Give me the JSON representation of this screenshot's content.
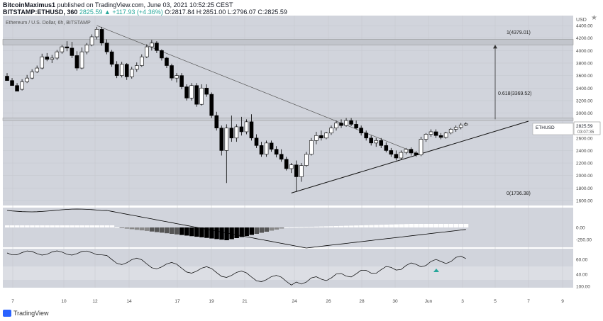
{
  "header": {
    "author": "BitcoinMaximus1",
    "published": "published on TradingView.com, June 03, 2021 10:52:25 CEST",
    "symbol": "BITSTAMP:ETHUSD, 360",
    "ohlc_change": "2825.59 ▲ +117.93 (+4.36%)",
    "open": "O:2817.84",
    "high": "H:2851.00",
    "low": "L:2796.07",
    "close": "C:2825.59"
  },
  "chart_title": "Ethereum / U.S. Dollar, 6h, BITSTAMP",
  "currency": "USD",
  "price_tag": {
    "symbol": "ETHUSD",
    "price": "2825.59",
    "countdown": "03:07:35"
  },
  "fib": {
    "top": "1(4379.01)",
    "mid": "0.618(3369.52)",
    "bottom": "0(1736.38)"
  },
  "footer": {
    "brand": "TradingView"
  },
  "colors": {
    "panel": "#d1d4dc",
    "candle_up": "#ffffff",
    "candle_down": "#000000",
    "up_text": "#26a69a",
    "arrow": "#26a69a"
  },
  "chart_data": {
    "type": "candlestick",
    "title": "Ethereum / U.S. Dollar, 6h, BITSTAMP",
    "y_ticks": [
      4400,
      4200,
      4000,
      3800,
      3600,
      3400,
      3200,
      3000,
      2800,
      2600,
      2400,
      2200,
      2000,
      1800,
      1600
    ],
    "x_ticks": [
      "7",
      "10",
      "12",
      "14",
      "17",
      "19",
      "21",
      "24",
      "26",
      "28",
      "30",
      "Jun",
      "3",
      "5",
      "7",
      "9"
    ],
    "ylim": [
      1520,
      4560
    ],
    "candles": [
      [
        3590,
        3640,
        3540,
        3520
      ],
      [
        3520,
        3560,
        3470,
        3440
      ],
      [
        3440,
        3480,
        3380,
        3350
      ],
      [
        3380,
        3540,
        3360,
        3500
      ],
      [
        3500,
        3610,
        3480,
        3560
      ],
      [
        3560,
        3700,
        3540,
        3660
      ],
      [
        3660,
        3760,
        3640,
        3720
      ],
      [
        3720,
        3950,
        3700,
        3900
      ],
      [
        3900,
        3960,
        3830,
        3860
      ],
      [
        3860,
        3930,
        3800,
        3880
      ],
      [
        3880,
        4010,
        3850,
        3980
      ],
      [
        3980,
        4090,
        3950,
        4060
      ],
      [
        4060,
        4150,
        3990,
        4040
      ],
      [
        4040,
        4140,
        3880,
        3920
      ],
      [
        3920,
        3990,
        3680,
        3720
      ],
      [
        3720,
        4050,
        3700,
        3980
      ],
      [
        3980,
        4120,
        3940,
        4090
      ],
      [
        4090,
        4260,
        4070,
        4220
      ],
      [
        4220,
        4380,
        4180,
        4340
      ],
      [
        4340,
        4380,
        4080,
        4120
      ],
      [
        4120,
        4180,
        3940,
        3980
      ],
      [
        3980,
        4010,
        3740,
        3780
      ],
      [
        3780,
        3830,
        3560,
        3600
      ],
      [
        3600,
        3820,
        3570,
        3780
      ],
      [
        3780,
        3800,
        3530,
        3580
      ],
      [
        3580,
        3740,
        3550,
        3700
      ],
      [
        3700,
        3810,
        3660,
        3760
      ],
      [
        3760,
        3940,
        3740,
        3900
      ],
      [
        3900,
        4100,
        3880,
        4060
      ],
      [
        4060,
        4170,
        4000,
        4120
      ],
      [
        4120,
        4150,
        3960,
        4000
      ],
      [
        4000,
        4020,
        3840,
        3880
      ],
      [
        3880,
        3900,
        3720,
        3760
      ],
      [
        3760,
        3790,
        3520,
        3560
      ],
      [
        3560,
        3640,
        3490,
        3600
      ],
      [
        3600,
        3640,
        3380,
        3420
      ],
      [
        3420,
        3460,
        3200,
        3240
      ],
      [
        3240,
        3480,
        3200,
        3440
      ],
      [
        3440,
        3480,
        3100,
        3140
      ],
      [
        3140,
        3460,
        3120,
        3400
      ],
      [
        3400,
        3460,
        3260,
        3300
      ],
      [
        3300,
        3330,
        2920,
        2960
      ],
      [
        2960,
        3020,
        2720,
        2760
      ],
      [
        2760,
        2800,
        2320,
        2400
      ],
      [
        2400,
        2820,
        1880,
        2760
      ],
      [
        2760,
        2960,
        2540,
        2600
      ],
      [
        2600,
        2820,
        2540,
        2780
      ],
      [
        2780,
        2940,
        2640,
        2700
      ],
      [
        2700,
        2900,
        2660,
        2860
      ],
      [
        2860,
        2980,
        2560,
        2600
      ],
      [
        2600,
        2660,
        2440,
        2480
      ],
      [
        2480,
        2540,
        2300,
        2340
      ],
      [
        2340,
        2560,
        2300,
        2520
      ],
      [
        2520,
        2560,
        2380,
        2420
      ],
      [
        2420,
        2470,
        2290,
        2340
      ],
      [
        2340,
        2420,
        2220,
        2260
      ],
      [
        2260,
        2300,
        2080,
        2110
      ],
      [
        2110,
        2200,
        2040,
        2170
      ],
      [
        2170,
        2240,
        1740,
        1980
      ],
      [
        1980,
        2200,
        1900,
        2160
      ],
      [
        2160,
        2380,
        2140,
        2340
      ],
      [
        2340,
        2600,
        2320,
        2560
      ],
      [
        2560,
        2700,
        2500,
        2640
      ],
      [
        2640,
        2720,
        2560,
        2600
      ],
      [
        2600,
        2700,
        2580,
        2680
      ],
      [
        2680,
        2800,
        2650,
        2760
      ],
      [
        2760,
        2880,
        2720,
        2840
      ],
      [
        2840,
        2900,
        2760,
        2800
      ],
      [
        2800,
        2920,
        2780,
        2880
      ],
      [
        2880,
        2920,
        2790,
        2820
      ],
      [
        2820,
        2880,
        2740,
        2760
      ],
      [
        2760,
        2800,
        2640,
        2680
      ],
      [
        2680,
        2720,
        2560,
        2600
      ],
      [
        2600,
        2640,
        2480,
        2520
      ],
      [
        2520,
        2600,
        2460,
        2560
      ],
      [
        2560,
        2600,
        2440,
        2480
      ],
      [
        2480,
        2530,
        2370,
        2400
      ],
      [
        2400,
        2440,
        2300,
        2340
      ],
      [
        2340,
        2400,
        2240,
        2280
      ],
      [
        2280,
        2400,
        2250,
        2370
      ],
      [
        2370,
        2440,
        2340,
        2420
      ],
      [
        2420,
        2450,
        2320,
        2360
      ],
      [
        2360,
        2390,
        2300,
        2330
      ],
      [
        2330,
        2620,
        2310,
        2580
      ],
      [
        2580,
        2680,
        2540,
        2660
      ],
      [
        2660,
        2740,
        2620,
        2700
      ],
      [
        2700,
        2740,
        2600,
        2640
      ],
      [
        2640,
        2680,
        2580,
        2610
      ],
      [
        2610,
        2700,
        2590,
        2680
      ],
      [
        2680,
        2760,
        2660,
        2740
      ],
      [
        2740,
        2800,
        2700,
        2770
      ],
      [
        2770,
        2840,
        2740,
        2810
      ],
      [
        2810,
        2851,
        2796,
        2826
      ]
    ],
    "resistance_band": [
      4090,
      4180
    ],
    "horizontal_line": 2900,
    "indicator1_ticks": [
      0.0,
      -250.0
    ],
    "indicator2_ticks": [
      60.0,
      40.0,
      100.0
    ]
  }
}
